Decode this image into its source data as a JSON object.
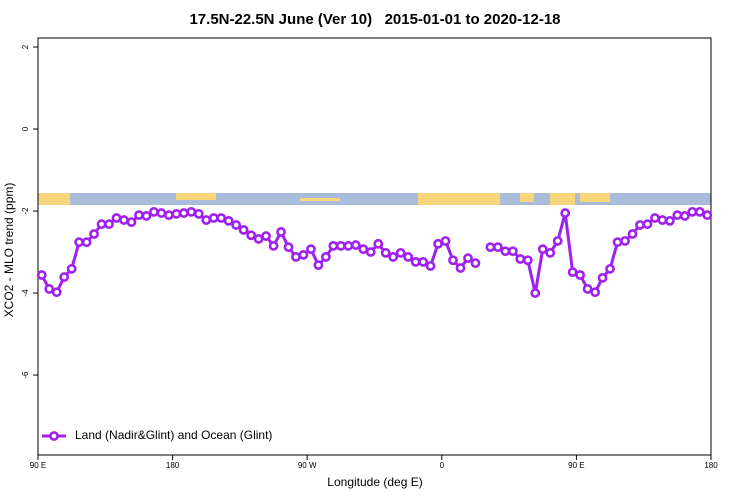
{
  "chart_data": {
    "type": "line",
    "title": "17.5N-22.5N June (Ver 10)   2015-01-01 to 2020-12-18",
    "x_label": "Longitude (deg E)",
    "y_label": "XCO2 - MLO trend (ppm)",
    "x": [
      92.5,
      97.5,
      102.5,
      107.5,
      112.5,
      117.5,
      122.5,
      127.5,
      132.5,
      137.5,
      142.5,
      147.5,
      152.5,
      157.5,
      162.5,
      167.5,
      172.5,
      177.5,
      182.5,
      187.5,
      192.5,
      197.5,
      202.5,
      207.5,
      212.5,
      217.5,
      222.5,
      227.5,
      232.5,
      237.5,
      242.5,
      247.5,
      252.5,
      257.5,
      262.5,
      267.5,
      272.5,
      277.5,
      282.5,
      287.5,
      292.5,
      297.5,
      302.5,
      307.5,
      312.5,
      317.5,
      322.5,
      327.5,
      332.5,
      337.5,
      342.5,
      347.5,
      352.5,
      357.5,
      362.5,
      367.5,
      372.5,
      377.5,
      382.5,
      387.5,
      392.5,
      397.5,
      402.5,
      407.5,
      412.5,
      417.5,
      422.5,
      427.5,
      432.5,
      437.5,
      442.5,
      447.5,
      452.5,
      457.5,
      462.5,
      467.5,
      472.5,
      477.5,
      482.5,
      487.5,
      492.5,
      497.5,
      502.5,
      507.5,
      512.5,
      517.5,
      522.5,
      527.5,
      532.5,
      537.5
    ],
    "series": [
      {
        "name": "Land (Nadir&Glint) and Ocean (Glint)",
        "color": "#a020f0",
        "values": [
          -3.56,
          -3.9,
          -3.98,
          -3.61,
          -3.41,
          -2.76,
          -2.76,
          -2.56,
          -2.32,
          -2.32,
          -2.17,
          -2.22,
          -2.27,
          -2.1,
          -2.12,
          -2.02,
          -2.05,
          -2.1,
          -2.07,
          -2.05,
          -2.02,
          -2.07,
          -2.22,
          -2.17,
          -2.17,
          -2.24,
          -2.34,
          -2.46,
          -2.59,
          -2.68,
          -2.61,
          -2.85,
          -2.51,
          -2.88,
          -3.12,
          -3.07,
          -2.93,
          -3.32,
          -3.12,
          -2.85,
          -2.85,
          -2.85,
          -2.83,
          -2.93,
          -3.0,
          -2.8,
          -3.02,
          -3.12,
          -3.02,
          -3.12,
          -3.24,
          -3.24,
          -3.34,
          -2.8,
          -2.73,
          -3.2,
          -3.39,
          -3.15,
          -3.27,
          null,
          -2.88,
          -2.88,
          -2.98,
          -2.98,
          -3.17,
          -3.2,
          -4.0,
          -2.93,
          -3.02,
          -2.73,
          -2.05,
          -3.49,
          -3.56,
          -3.9,
          -3.98,
          -3.63,
          -3.41,
          -2.76,
          -2.73,
          -2.56,
          -2.34,
          -2.32,
          -2.17,
          -2.22,
          -2.24,
          -2.1,
          -2.12,
          -2.02,
          -2.02,
          -2.1
        ]
      }
    ],
    "xlim": [
      90,
      540
    ],
    "xticks": [
      {
        "value": 90,
        "label": "90 E"
      },
      180,
      {
        "value": 270,
        "label": "90 W"
      },
      {
        "value": 360,
        "label": "0"
      },
      {
        "value": 450,
        "label": "90 E"
      },
      {
        "value": 540,
        "label": "180"
      }
    ],
    "ylim": [
      -7.95,
      2.22
    ],
    "yticks": [
      2,
      0,
      -2,
      -4,
      -6
    ],
    "legend": "bottom-left"
  }
}
